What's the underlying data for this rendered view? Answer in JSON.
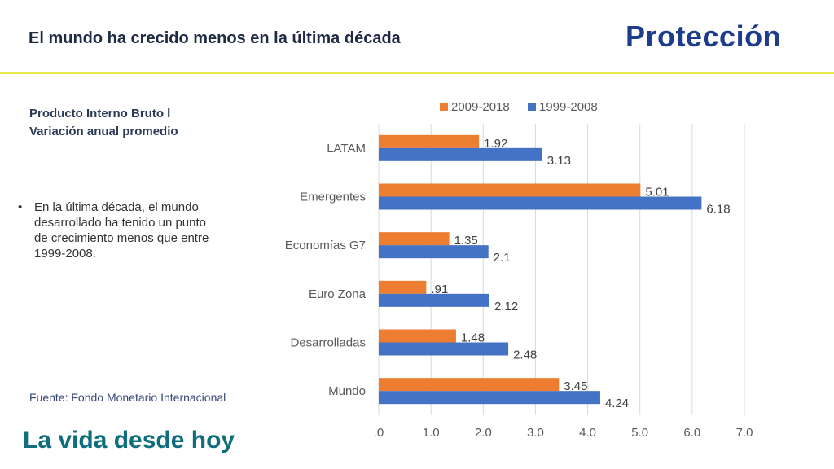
{
  "header": {
    "title": "El mundo ha crecido menos en la última década",
    "logo_text": "Protección"
  },
  "left_panel": {
    "subtitle_line1": "Producto Interno Bruto l",
    "subtitle_line2": "Variación anual promedio",
    "bullet_text": "En la última década, el mundo desarrollado ha tenido un punto de crecimiento menos que entre 1999-2008.",
    "source": "Fuente: Fondo Monetario Internacional"
  },
  "footer": {
    "tagline": "La vida desde hoy"
  },
  "colors": {
    "series_recent": "#ed7d31",
    "series_prior": "#4472c4",
    "accent_rule": "#e8e84a",
    "brand": "#1e3c8c"
  },
  "chart_data": {
    "type": "bar",
    "orientation": "horizontal",
    "categories": [
      "LATAM",
      "Emergentes",
      "Economías G7",
      "Euro Zona",
      "Desarrolladas",
      "Mundo"
    ],
    "series": [
      {
        "name": "2009-2018",
        "values": [
          1.92,
          5.01,
          1.35,
          0.91,
          1.48,
          3.45
        ],
        "labels": [
          "1.92",
          "5.01",
          "1.35",
          ".91",
          "1.48",
          "3.45"
        ],
        "color": "#ed7d31"
      },
      {
        "name": "1999-2008",
        "values": [
          3.13,
          6.18,
          2.1,
          2.12,
          2.48,
          4.24
        ],
        "labels": [
          "3.13",
          "6.18",
          "2.1",
          "2.12",
          "2.48",
          "4.24"
        ],
        "color": "#4472c4"
      }
    ],
    "xlim": [
      0,
      7
    ],
    "xticks": [
      ".0",
      "1.0",
      "2.0",
      "3.0",
      "4.0",
      "5.0",
      "6.0",
      "7.0"
    ],
    "grid": true,
    "legend": "top"
  }
}
